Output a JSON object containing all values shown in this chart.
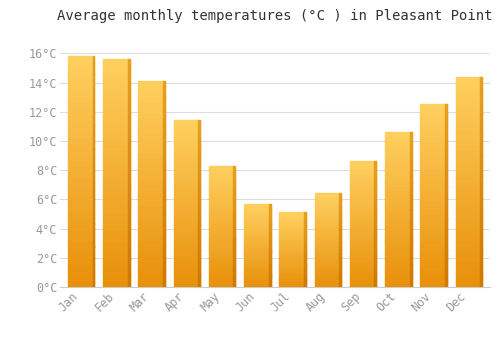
{
  "months": [
    "Jan",
    "Feb",
    "Mar",
    "Apr",
    "May",
    "Jun",
    "Jul",
    "Aug",
    "Sep",
    "Oct",
    "Nov",
    "Dec"
  ],
  "temperatures": [
    15.8,
    15.6,
    14.1,
    11.4,
    8.3,
    5.7,
    5.1,
    6.4,
    8.6,
    10.6,
    12.5,
    14.4
  ],
  "bar_color_main": "#FDB827",
  "bar_color_edge": "#E09010",
  "background_color": "#FFFFFF",
  "grid_color": "#DDDDDD",
  "title": "Average monthly temperatures (°C ) in Pleasant Point",
  "ylabel_ticks": [
    "0°C",
    "2°C",
    "4°C",
    "6°C",
    "8°C",
    "10°C",
    "12°C",
    "14°C",
    "16°C"
  ],
  "ytick_values": [
    0,
    2,
    4,
    6,
    8,
    10,
    12,
    14,
    16
  ],
  "ylim": [
    0,
    17.5
  ],
  "title_fontsize": 10,
  "tick_fontsize": 8.5,
  "tick_color": "#999999",
  "title_color": "#333333"
}
